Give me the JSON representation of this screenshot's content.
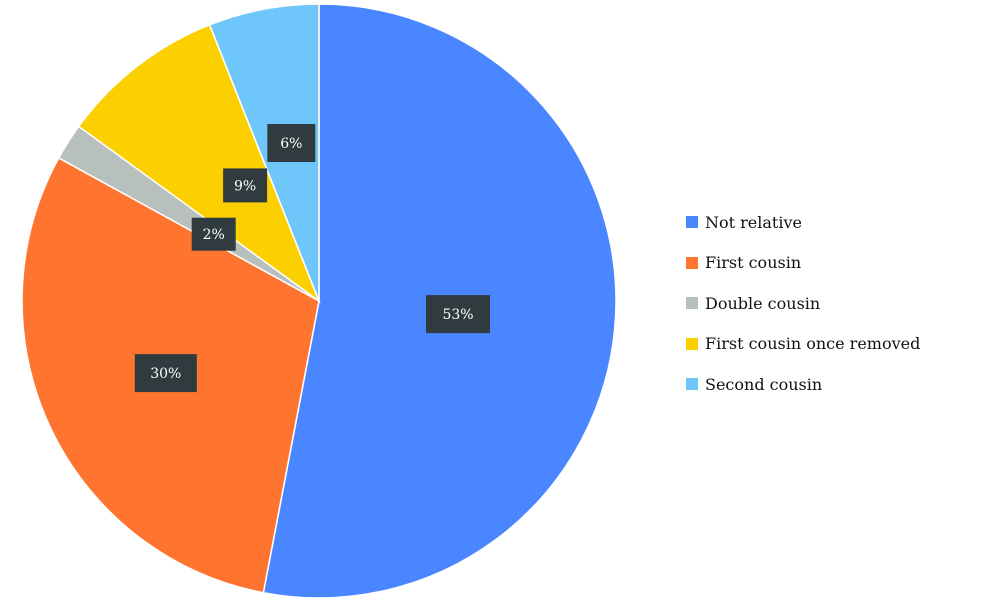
{
  "chart_data": {
    "type": "pie",
    "title": "",
    "categories": [
      "Not relative",
      "First cousin",
      "Double cousin",
      "First cousin once removed",
      "Second cousin"
    ],
    "values": [
      53,
      30,
      2,
      9,
      6
    ],
    "value_labels": [
      "53%",
      "30%",
      "2%",
      "9%",
      "6%"
    ],
    "colors": [
      "#4a86ff",
      "#ff7530",
      "#b8c0be",
      "#fcd000",
      "#6ec6fb"
    ],
    "start": "12 o'clock",
    "direction": "clockwise",
    "legend_position": "right"
  }
}
